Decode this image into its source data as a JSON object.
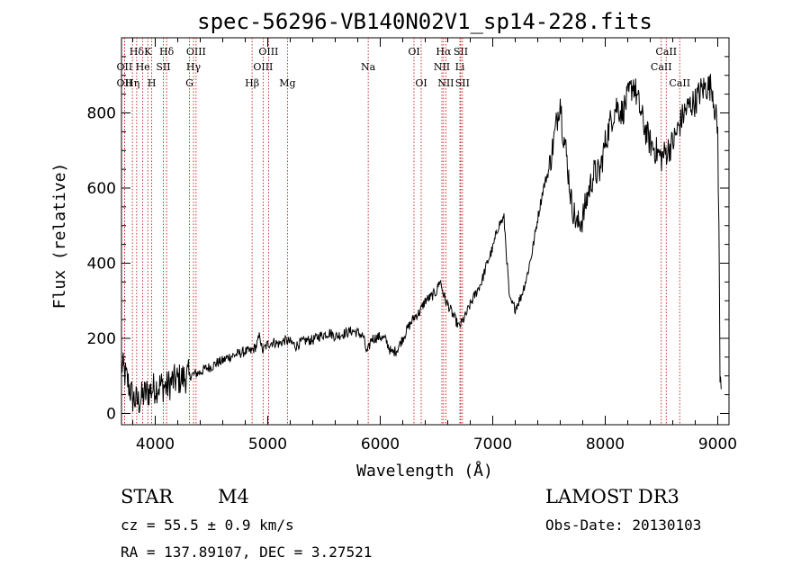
{
  "chart_data": {
    "type": "line",
    "title": "spec-56296-VB140N02V1_sp14-228.fits",
    "xlabel": "Wavelength (Å)",
    "ylabel": "Flux (relative)",
    "xlim": [
      3700,
      9100
    ],
    "ylim": [
      -30,
      1000
    ],
    "xticks": [
      4000,
      5000,
      6000,
      7000,
      8000,
      9000
    ],
    "yticks": [
      0,
      200,
      400,
      600,
      800
    ],
    "grid": false,
    "series": [
      {
        "name": "spectrum",
        "x": [
          3700,
          3760,
          3800,
          3850,
          3900,
          3950,
          4000,
          4050,
          4100,
          4150,
          4200,
          4250,
          4300,
          4350,
          4400,
          4450,
          4500,
          4550,
          4600,
          4650,
          4700,
          4750,
          4800,
          4850,
          4900,
          4930,
          4950,
          5000,
          5050,
          5100,
          5150,
          5200,
          5250,
          5300,
          5350,
          5400,
          5450,
          5500,
          5550,
          5600,
          5650,
          5700,
          5750,
          5800,
          5850,
          5880,
          5900,
          5920,
          5950,
          6000,
          6050,
          6100,
          6150,
          6200,
          6250,
          6300,
          6350,
          6400,
          6450,
          6500,
          6530,
          6560,
          6580,
          6600,
          6650,
          6700,
          6750,
          6800,
          6850,
          6900,
          6950,
          7000,
          7050,
          7100,
          7150,
          7200,
          7250,
          7300,
          7350,
          7400,
          7450,
          7500,
          7550,
          7580,
          7600,
          7620,
          7650,
          7700,
          7750,
          7800,
          7850,
          7900,
          7950,
          8000,
          8050,
          8100,
          8150,
          8200,
          8250,
          8300,
          8350,
          8400,
          8450,
          8500,
          8550,
          8600,
          8650,
          8700,
          8750,
          8800,
          8850,
          8900,
          8950,
          9000,
          9010,
          9020,
          9030
        ],
        "values": [
          130,
          80,
          40,
          30,
          50,
          60,
          70,
          75,
          70,
          85,
          90,
          95,
          100,
          105,
          110,
          120,
          125,
          135,
          140,
          150,
          155,
          160,
          165,
          165,
          180,
          210,
          165,
          185,
          190,
          185,
          195,
          190,
          180,
          190,
          195,
          195,
          205,
          210,
          215,
          205,
          210,
          215,
          220,
          215,
          205,
          160,
          175,
          200,
          200,
          205,
          195,
          160,
          170,
          200,
          230,
          255,
          270,
          300,
          310,
          325,
          355,
          320,
          300,
          290,
          260,
          230,
          255,
          290,
          320,
          350,
          400,
          440,
          500,
          520,
          300,
          280,
          310,
          360,
          430,
          520,
          600,
          650,
          740,
          800,
          840,
          760,
          700,
          560,
          500,
          520,
          590,
          640,
          640,
          720,
          780,
          820,
          800,
          840,
          880,
          820,
          760,
          720,
          700,
          680,
          700,
          720,
          760,
          800,
          820,
          830,
          860,
          870,
          870,
          750,
          500,
          100,
          50
        ]
      }
    ],
    "line_markers": [
      {
        "label": "Hδ",
        "wavelength": 3835,
        "row": 0
      },
      {
        "label": "OII",
        "wavelength": 3727,
        "row": 1
      },
      {
        "label": "OII",
        "wavelength": 3727,
        "row": 2
      },
      {
        "label": "K",
        "wavelength": 3934,
        "row": 0
      },
      {
        "label": "He",
        "wavelength": 3889,
        "row": 1
      },
      {
        "label": "Hη",
        "wavelength": 3797,
        "row": 2
      },
      {
        "label": "Hδ",
        "wavelength": 4101,
        "row": 0
      },
      {
        "label": "SII",
        "wavelength": 4072,
        "row": 1
      },
      {
        "label": "H",
        "wavelength": 3969,
        "row": 2
      },
      {
        "label": "OIII",
        "wavelength": 4363,
        "row": 0
      },
      {
        "label": "Hγ",
        "wavelength": 4340,
        "row": 1
      },
      {
        "label": "G",
        "wavelength": 4304,
        "row": 2
      },
      {
        "label": "OIII",
        "wavelength": 5007,
        "row": 0
      },
      {
        "label": "OIII",
        "wavelength": 4959,
        "row": 1
      },
      {
        "label": "Hβ",
        "wavelength": 4861,
        "row": 2
      },
      {
        "label": "Mg",
        "wavelength": 5175,
        "row": 2
      },
      {
        "label": "Na",
        "wavelength": 5893,
        "row": 1
      },
      {
        "label": "OI",
        "wavelength": 6300,
        "row": 0
      },
      {
        "label": "OI",
        "wavelength": 6364,
        "row": 2
      },
      {
        "label": "Hα",
        "wavelength": 6563,
        "row": 0
      },
      {
        "label": "NII",
        "wavelength": 6548,
        "row": 1
      },
      {
        "label": "NII",
        "wavelength": 6583,
        "row": 2
      },
      {
        "label": "SII",
        "wavelength": 6716,
        "row": 0
      },
      {
        "label": "Li",
        "wavelength": 6708,
        "row": 1
      },
      {
        "label": "SII",
        "wavelength": 6731,
        "row": 2
      },
      {
        "label": "CaII",
        "wavelength": 8542,
        "row": 0
      },
      {
        "label": "CaII",
        "wavelength": 8498,
        "row": 1
      },
      {
        "label": "CaII",
        "wavelength": 8662,
        "row": 2
      }
    ]
  },
  "info": {
    "obj_class": "STAR",
    "subclass": "M4",
    "survey": "LAMOST DR3",
    "cz": "cz = 55.5 ± 0.9 km/s",
    "obs_date": "Obs-Date: 20130103",
    "radec": "RA = 137.89107, DEC =   3.27521"
  }
}
